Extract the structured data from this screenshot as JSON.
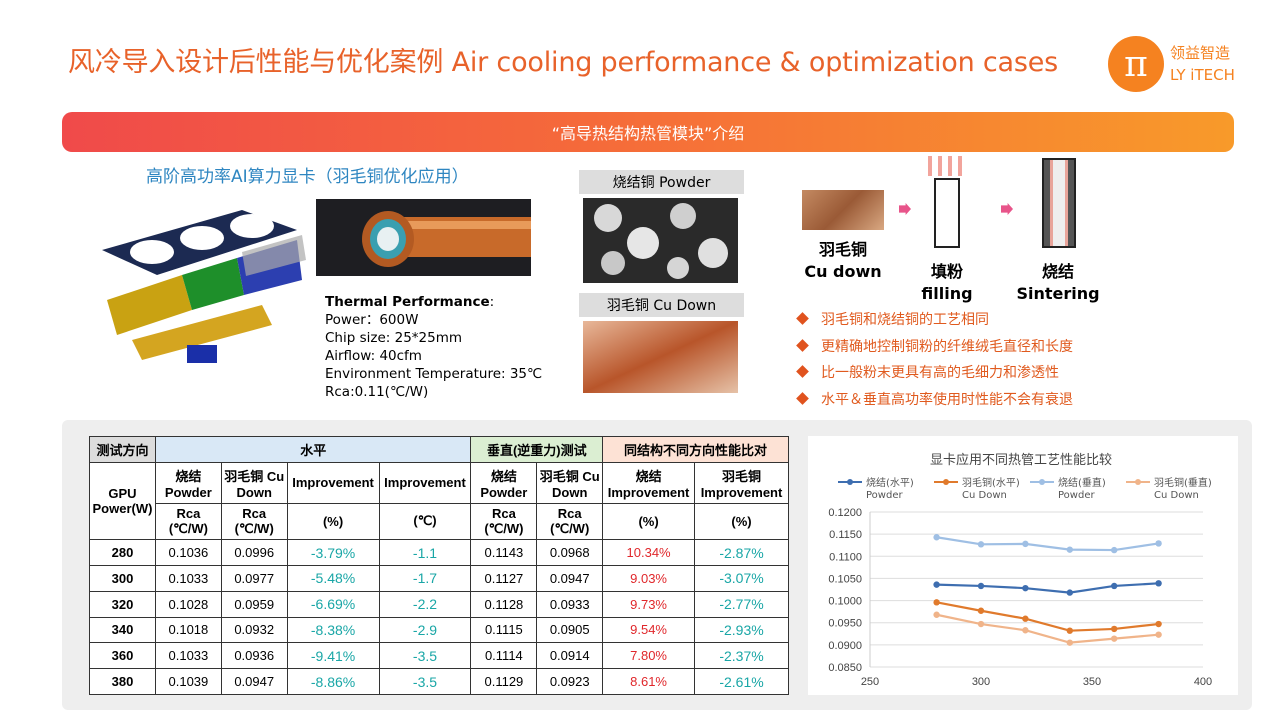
{
  "title": "风冷导入设计后性能与优化案例 Air cooling performance & optimization cases",
  "logo": {
    "symbol": "π",
    "cn": "领益智造",
    "en": "LY iTECH"
  },
  "banner": "“高导热结构热管模块”介绍",
  "gpu_heading": "高阶高功率AI算力显卡（羽毛铜优化应用）",
  "thermal": {
    "title": "Thermal Performance",
    "lines": [
      "Power：600W",
      "Chip size: 25*25mm",
      "Airflow: 40cfm",
      "Environment Temperature: 35℃",
      "Rca:0.11(℃/W)"
    ]
  },
  "powder_label": "烧结铜 Powder",
  "cudown_label": "羽毛铜 Cu Down",
  "steps": [
    {
      "cn": "羽毛铜",
      "en": "Cu down"
    },
    {
      "cn": "填粉",
      "en": "filling"
    },
    {
      "cn": "烧结",
      "en": "Sintering"
    }
  ],
  "bullets": [
    "羽毛铜和烧结铜的工艺相同",
    "更精确地控制铜粉的纤维绒毛直径和长度",
    "比一般粉末更具有高的毛细力和渗透性",
    "水平＆垂直高功率使用时性能不会有衰退"
  ],
  "table": {
    "h_test": "测试方向",
    "h_horiz": "水平",
    "h_vert": "垂直(逆重力)测试",
    "h_comp": "同结构不同方向性能比对",
    "gpu_power": "GPU Power(W)",
    "sub1": [
      "烧结 Powder",
      "羽毛铜 Cu Down",
      "Improvement",
      "Improvement",
      "烧结 Powder",
      "羽毛铜 Cu Down",
      "烧结 Improvement",
      "羽毛铜 Improvement"
    ],
    "sub2": [
      "Rca (℃/W)",
      "Rca (℃/W)",
      "(%)",
      "(℃)",
      "Rca (℃/W)",
      "Rca (℃/W)",
      "(%)",
      "(%)"
    ],
    "rows": [
      [
        "280",
        "0.1036",
        "0.0996",
        "-3.79%",
        "-1.1",
        "0.1143",
        "0.0968",
        "10.34%",
        "-2.87%"
      ],
      [
        "300",
        "0.1033",
        "0.0977",
        "-5.48%",
        "-1.7",
        "0.1127",
        "0.0947",
        "9.03%",
        "-3.07%"
      ],
      [
        "320",
        "0.1028",
        "0.0959",
        "-6.69%",
        "-2.2",
        "0.1128",
        "0.0933",
        "9.73%",
        "-2.77%"
      ],
      [
        "340",
        "0.1018",
        "0.0932",
        "-8.38%",
        "-2.9",
        "0.1115",
        "0.0905",
        "9.54%",
        "-2.93%"
      ],
      [
        "360",
        "0.1033",
        "0.0936",
        "-9.41%",
        "-3.5",
        "0.1114",
        "0.0914",
        "7.80%",
        "-2.37%"
      ],
      [
        "380",
        "0.1039",
        "0.0947",
        "-8.86%",
        "-3.5",
        "0.1129",
        "0.0923",
        "8.61%",
        "-2.61%"
      ]
    ]
  },
  "chart_data": {
    "type": "line",
    "title": "显卡应用不同热管工艺性能比较",
    "x": [
      280,
      300,
      320,
      340,
      360,
      380
    ],
    "xlim": [
      250,
      400
    ],
    "xticks": [
      250,
      300,
      350,
      400
    ],
    "ylim": [
      0.085,
      0.12
    ],
    "yticks": [
      0.085,
      0.09,
      0.095,
      0.1,
      0.105,
      0.11,
      0.115,
      0.12
    ],
    "ytick_labels": [
      "0.0850",
      "0.0900",
      "0.0950",
      "0.1000",
      "0.1050",
      "0.1100",
      "0.1150",
      "0.1200"
    ],
    "legend_position": "top",
    "series": [
      {
        "name": "烧结(水平) Powder",
        "color": "#3e6eb0",
        "values": [
          0.1036,
          0.1033,
          0.1028,
          0.1018,
          0.1033,
          0.1039
        ]
      },
      {
        "name": "羽毛铜(水平) Cu Down",
        "color": "#e07a2c",
        "values": [
          0.0996,
          0.0977,
          0.0959,
          0.0932,
          0.0936,
          0.0947
        ]
      },
      {
        "name": "烧结(垂直) Powder",
        "color": "#9fbfe4",
        "values": [
          0.1143,
          0.1127,
          0.1128,
          0.1115,
          0.1114,
          0.1129
        ]
      },
      {
        "name": "羽毛铜(垂直) Cu Down",
        "color": "#f0b48a",
        "values": [
          0.0968,
          0.0947,
          0.0933,
          0.0905,
          0.0914,
          0.0923
        ]
      }
    ]
  }
}
